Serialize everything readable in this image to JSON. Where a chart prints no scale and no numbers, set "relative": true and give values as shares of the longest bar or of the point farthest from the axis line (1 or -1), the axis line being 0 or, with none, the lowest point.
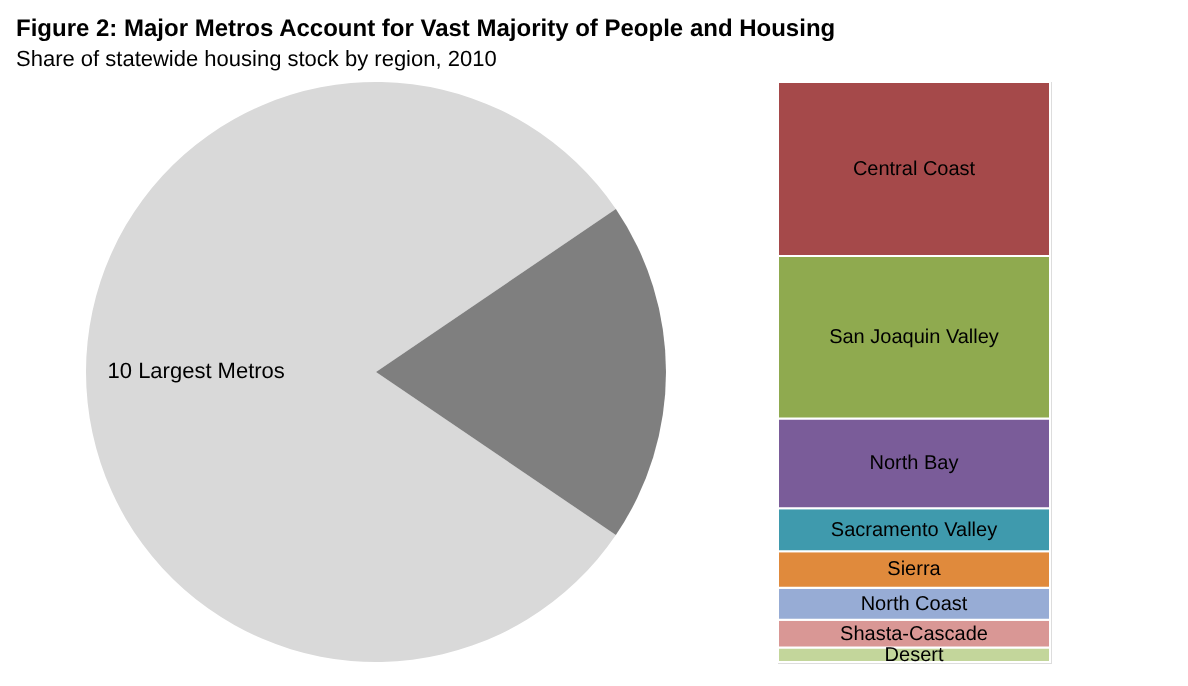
{
  "chart_data": [
    {
      "type": "pie",
      "title": "Figure 2: Major Metros Account for Vast Majority of People and Housing",
      "subtitle": "Share of statewide housing stock by region, 2010",
      "categories": [
        "10 Largest Metros",
        null
      ],
      "values": [
        81,
        19
      ],
      "colors": [
        "#d9d9d9",
        "#7f7f7f"
      ]
    },
    {
      "type": "bar",
      "stacked": true,
      "relative": true,
      "categories": [
        null
      ],
      "series": [
        {
          "name": "Desert",
          "color": "#c3d69b",
          "values": [
            0.025
          ]
        },
        {
          "name": "Shasta-Cascade",
          "color": "#d99795",
          "values": [
            0.048
          ]
        },
        {
          "name": "North Coast",
          "color": "#97acd5",
          "values": [
            0.055
          ]
        },
        {
          "name": "Sierra",
          "color": "#e08a3c",
          "values": [
            0.063
          ]
        },
        {
          "name": "Sacramento Valley",
          "color": "#3f9aad",
          "values": [
            0.074
          ]
        },
        {
          "name": "North Bay",
          "color": "#7a5c99",
          "values": [
            0.155
          ]
        },
        {
          "name": "San Joaquin Valley",
          "color": "#8faa4f",
          "values": [
            0.28
          ]
        },
        {
          "name": "Central Coast",
          "color": "#a5494a",
          "values": [
            0.3
          ]
        }
      ]
    }
  ]
}
